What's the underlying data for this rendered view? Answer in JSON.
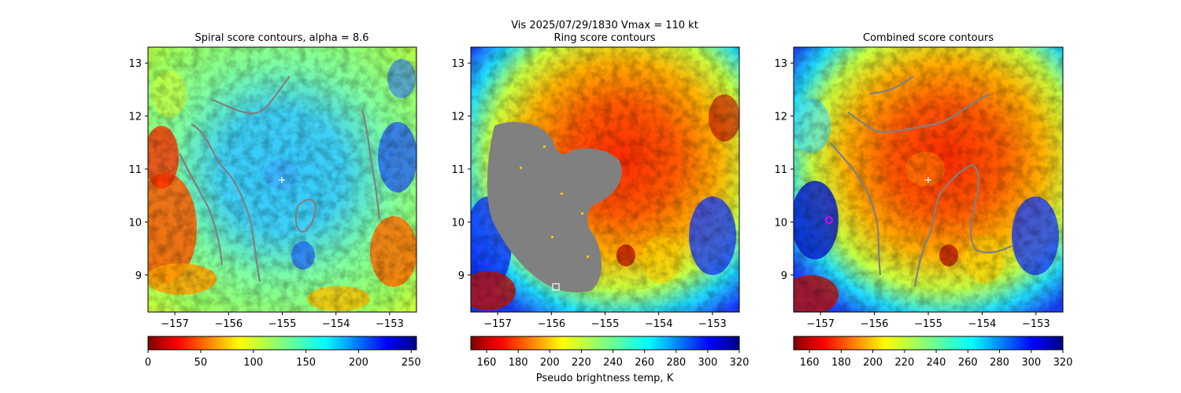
{
  "figure": {
    "suptitle_line1": "Vis  2025/07/29/1830    Vmax = 110 kt",
    "colorbar_label": "Pseudo brightness temp, K"
  },
  "chart_data": [
    {
      "type": "heatmap",
      "title": "Spiral score contours, alpha =  8.6",
      "xlim": [
        -157.5,
        -152.5
      ],
      "ylim": [
        8.3,
        13.3
      ],
      "x_ticks": [
        "−157",
        "−156",
        "−155",
        "−154",
        "−153"
      ],
      "y_ticks": [
        "9",
        "10",
        "11",
        "12",
        "13"
      ],
      "colormap": "jet_r",
      "colorbar": {
        "range": [
          0,
          255
        ],
        "ticks": [
          "0",
          "50",
          "100",
          "150",
          "200",
          "250"
        ]
      },
      "center_marker": {
        "lon": -155.0,
        "lat": 10.8,
        "symbol": "+"
      },
      "contour_color": "#808080"
    },
    {
      "type": "heatmap",
      "title": "Ring score contours",
      "xlim": [
        -157.5,
        -152.5
      ],
      "ylim": [
        8.3,
        13.3
      ],
      "x_ticks": [
        "−157",
        "−156",
        "−155",
        "−154",
        "−153"
      ],
      "y_ticks": [
        "9",
        "10",
        "11",
        "12",
        "13"
      ],
      "colormap": "jet_r",
      "colorbar": {
        "range": [
          150,
          320
        ],
        "ticks": [
          "160",
          "180",
          "200",
          "220",
          "240",
          "260",
          "280",
          "300",
          "320"
        ]
      },
      "masked_region_color": "#808080",
      "square_marker": {
        "lon": -156.0,
        "lat": 8.78
      }
    },
    {
      "type": "heatmap",
      "title": "Combined score contours",
      "xlim": [
        -157.5,
        -152.5
      ],
      "ylim": [
        8.3,
        13.3
      ],
      "x_ticks": [
        "−157",
        "−156",
        "−155",
        "−154",
        "−153"
      ],
      "y_ticks": [
        "9",
        "10",
        "11",
        "12",
        "13"
      ],
      "colormap": "jet_r",
      "colorbar": {
        "range": [
          150,
          320
        ],
        "ticks": [
          "160",
          "180",
          "200",
          "220",
          "240",
          "260",
          "280",
          "300",
          "320"
        ]
      },
      "center_marker": {
        "lon": -155.0,
        "lat": 10.8,
        "symbol": "+"
      },
      "circle_marker": {
        "lon": -157.0,
        "lat": 10.05,
        "color": "#ff00ff"
      },
      "contour_color": "#808080"
    }
  ]
}
